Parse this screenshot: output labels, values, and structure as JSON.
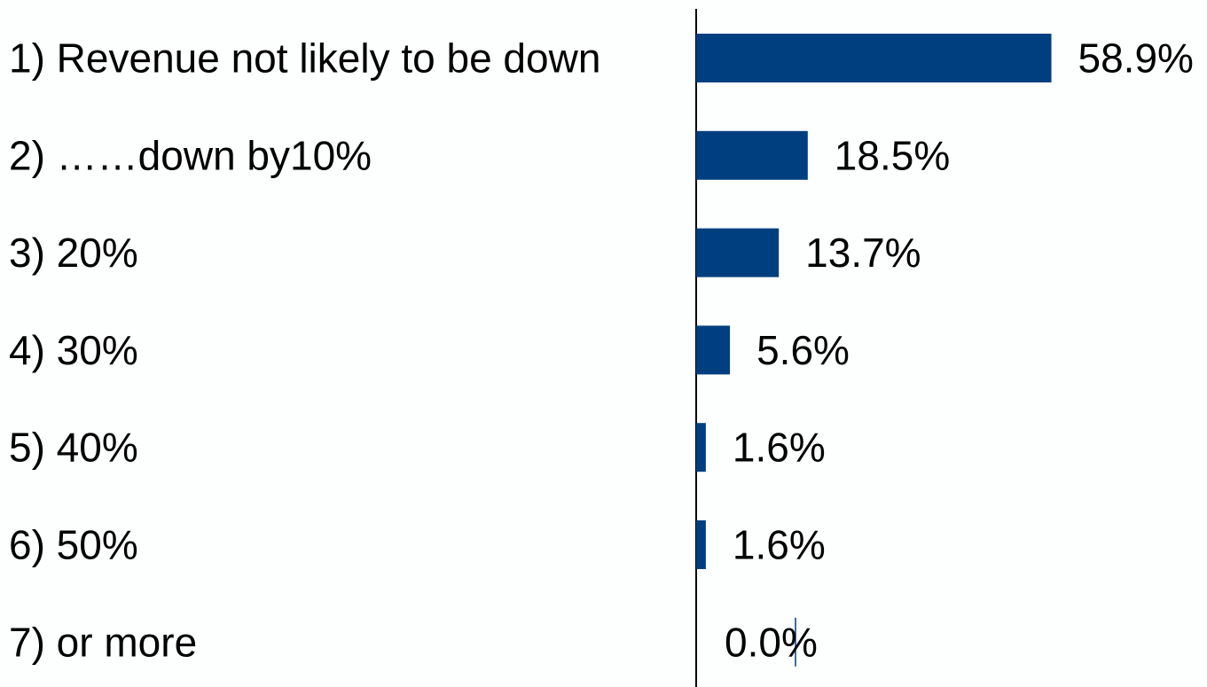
{
  "chart_data": {
    "type": "bar",
    "orientation": "horizontal",
    "categories": [
      "1)  Revenue not likely to be down",
      "2)  ……down by10%",
      "3)  20%",
      "4)  30%",
      "5)  40%",
      "6)  50%",
      "7)  or more"
    ],
    "values": [
      58.9,
      18.5,
      13.7,
      5.6,
      1.6,
      1.6,
      0.0
    ],
    "value_labels": [
      "58.9%",
      "18.5%",
      "13.7%",
      "5.6%",
      "1.6%",
      "1.6%",
      "0.0%"
    ],
    "title": "",
    "xlabel": "",
    "ylabel": "",
    "xlim": [
      0,
      100
    ],
    "grid": false,
    "legend": "none",
    "colors": {
      "bar": "#003f7f",
      "axis": "#000000",
      "text": "#000000",
      "background": "#fdfefe"
    }
  }
}
